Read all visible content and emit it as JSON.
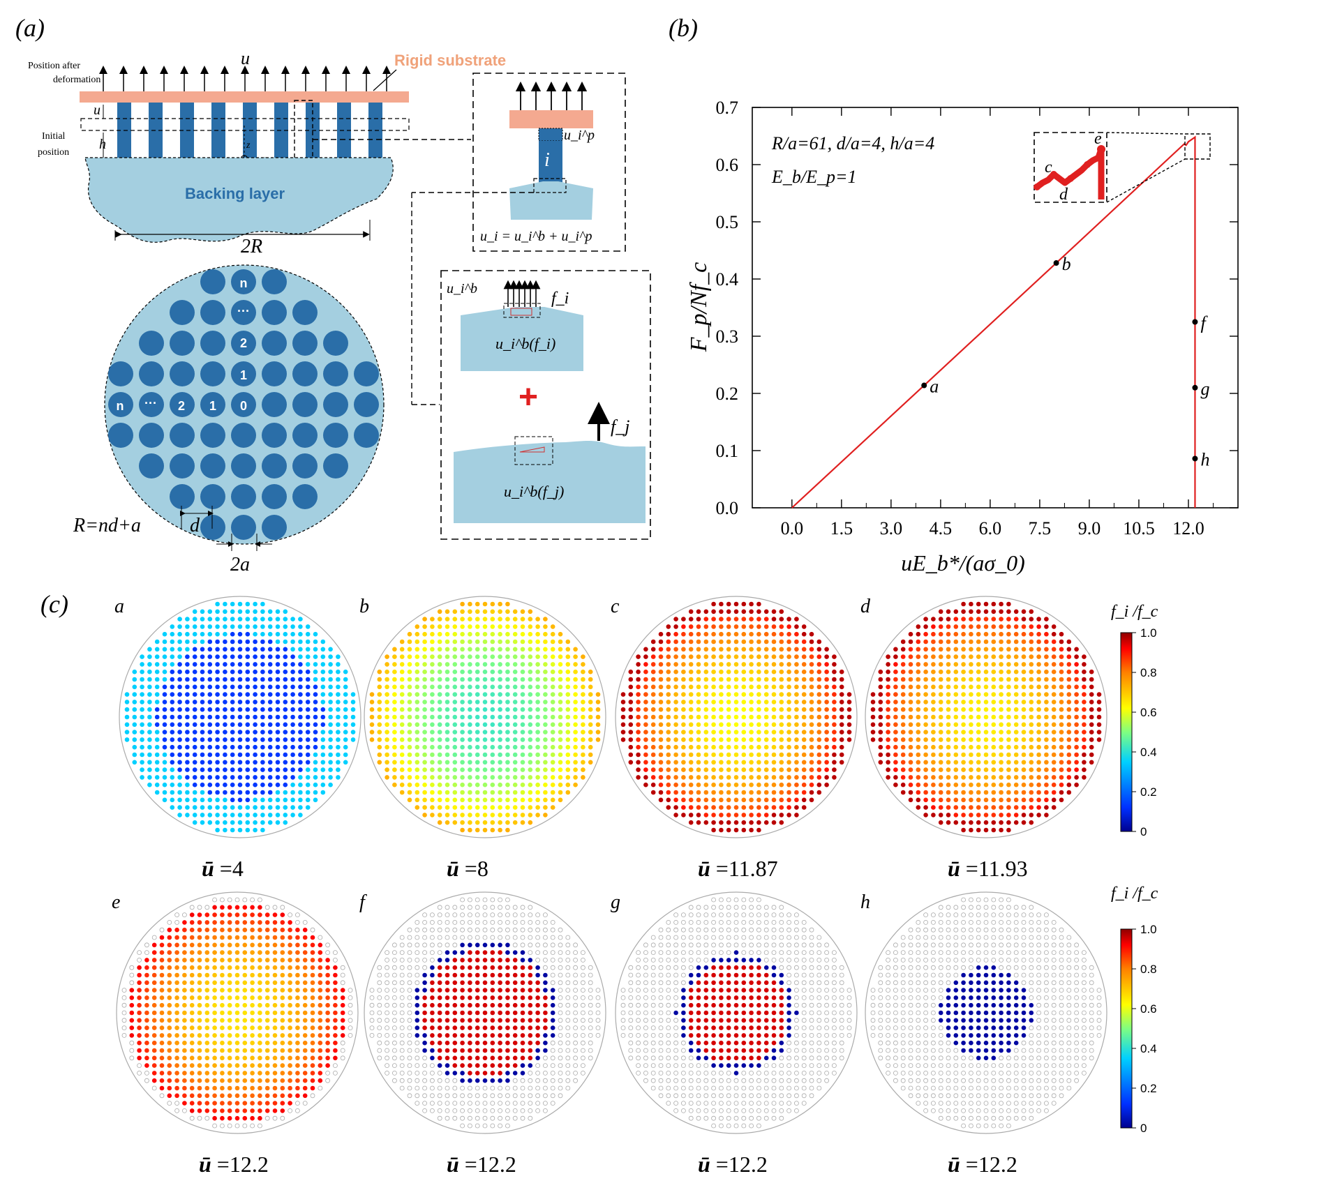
{
  "panel_a": {
    "label": "(a)",
    "u_top": "u",
    "rigid_substrate": "Rigid substrate",
    "position_after": [
      "Position after",
      "deformation"
    ],
    "initial_position": [
      "Initial",
      "position"
    ],
    "u_side": "u",
    "h_side": "h",
    "axis_z": "z",
    "axis_x": "x",
    "axis_y": "y",
    "backing_layer": "Backing layer",
    "two_R": "2R",
    "circle_n_top": "n",
    "circle_dots_top": "···",
    "circle_2_top": "2",
    "circle_1_top": "1",
    "circle_0": "0",
    "circle_1_left": "1",
    "circle_2_left": "2",
    "circle_dots_left": "···",
    "circle_n_left": "n",
    "R_formula": "R=nd+a",
    "d_label": "d",
    "two_a": "2a",
    "inset1_eq": "u_i = u_i^b + u_i^p",
    "inset1_i": "i",
    "inset1_uip": "u_i^p",
    "inset2_uib": "u_i^b",
    "inset2_fi": "f_i",
    "inset2_uibfi": "u_i^b(f_i)",
    "inset2_plus": "+",
    "inset2_fj": "f_j",
    "inset2_uibfj": "u_i^b(f_j)"
  },
  "panel_b": {
    "label": "(b)",
    "params_line1": "R/a=61, d/a=4, h/a=4",
    "params_line2": "E_b/E_p=1",
    "ylabel": "F_p/Nf_c",
    "xlabel": "uE_b*/(aσ_0)",
    "point_labels": {
      "a": "a",
      "b": "b",
      "c": "c",
      "d": "d",
      "e": "e",
      "f": "f",
      "g": "g",
      "h": "h"
    }
  },
  "chart_data": {
    "type": "line",
    "title": "",
    "xlabel": "uE_b*/(aσ_0)",
    "ylabel": "F_p/Nf_c",
    "xlim": [
      -1.2,
      13.5
    ],
    "ylim": [
      0.0,
      0.7
    ],
    "xticks": [
      "0.0",
      "1.5",
      "3.0",
      "4.5",
      "6.0",
      "7.5",
      "9.0",
      "10.5",
      "12.0"
    ],
    "yticks": [
      "0.0",
      "0.1",
      "0.2",
      "0.3",
      "0.4",
      "0.5",
      "0.6",
      "0.7"
    ],
    "series": [
      {
        "color": "#e02020",
        "points": [
          [
            0.0,
            0.0
          ],
          [
            4.0,
            0.214
          ],
          [
            8.0,
            0.428
          ],
          [
            11.87,
            0.636
          ],
          [
            11.93,
            0.634
          ],
          [
            12.0,
            0.64
          ],
          [
            12.1,
            0.644
          ],
          [
            12.2,
            0.648
          ],
          [
            12.2,
            0.0
          ]
        ]
      }
    ],
    "markers": [
      {
        "label": "a",
        "x": 4.0,
        "y": 0.214
      },
      {
        "label": "b",
        "x": 8.0,
        "y": 0.428
      },
      {
        "label": "f",
        "x": 12.2,
        "y": 0.325
      },
      {
        "label": "g",
        "x": 12.2,
        "y": 0.21
      },
      {
        "label": "h",
        "x": 12.2,
        "y": 0.086
      }
    ]
  },
  "panel_c": {
    "label": "(c)",
    "colorbar_title": "f_i /f_c",
    "colorbar_ticks": [
      "1.0",
      "0.8",
      "0.6",
      "0.4",
      "0.2",
      "0"
    ],
    "maps": [
      {
        "letter": "a",
        "caption": "=4",
        "mode": "uniform_low"
      },
      {
        "letter": "b",
        "caption": "=8",
        "mode": "uniform_mid"
      },
      {
        "letter": "c",
        "caption": "=11.87",
        "mode": "high_edge"
      },
      {
        "letter": "d",
        "caption": "=11.93",
        "mode": "high_edge2"
      },
      {
        "letter": "e",
        "caption": "=12.2",
        "mode": "edge_detach"
      },
      {
        "letter": "f",
        "caption": "=12.2",
        "mode": "core_large"
      },
      {
        "letter": "g",
        "caption": "=12.2",
        "mode": "core_mid"
      },
      {
        "letter": "h",
        "caption": "=12.2",
        "mode": "core_small"
      }
    ],
    "ubar": "ū"
  }
}
